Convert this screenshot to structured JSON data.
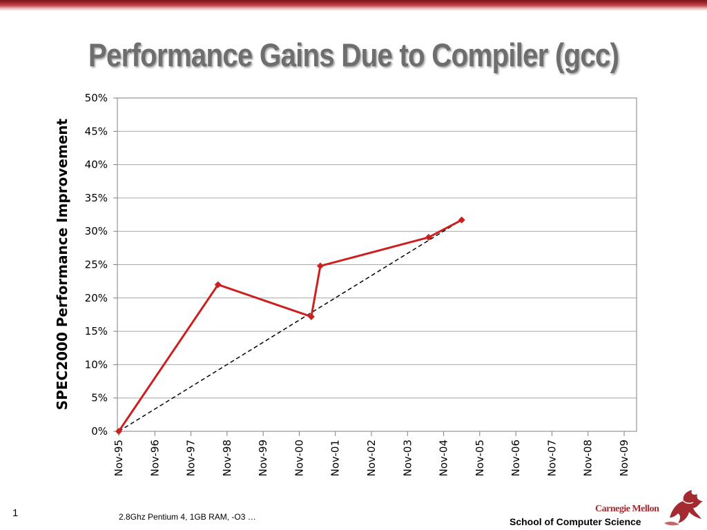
{
  "slide": {
    "title": "Performance Gains Due to Compiler (gcc)",
    "page_number": "1",
    "footnote": "2.8Ghz Pentium 4, 1GB RAM, -O3 …",
    "brand": "Carnegie Mellon",
    "school": "School of Computer Science",
    "logo_icon": "griffin-icon"
  },
  "chart_data": {
    "type": "line",
    "title": "",
    "ylabel": "SPEC2000 Performance Improvement",
    "xlabel": "",
    "ylim": [
      0,
      50
    ],
    "yticks": [
      0,
      5,
      10,
      15,
      20,
      25,
      30,
      35,
      40,
      45,
      50
    ],
    "ytick_labels": [
      "0%",
      "5%",
      "10%",
      "15%",
      "20%",
      "25%",
      "30%",
      "35%",
      "40%",
      "45%",
      "50%"
    ],
    "xticks": [
      "Nov-95",
      "Nov-96",
      "Nov-97",
      "Nov-98",
      "Nov-99",
      "Nov-00",
      "Nov-01",
      "Nov-02",
      "Nov-03",
      "Nov-04",
      "Nov-05",
      "Nov-06",
      "Nov-07",
      "Nov-08",
      "Nov-09"
    ],
    "grid": true,
    "legend": "none",
    "series": [
      {
        "color": "#cc1f1f",
        "marker": "diamond",
        "points": [
          {
            "x": "Nov-95",
            "y": 0.0
          },
          {
            "x": "Aug-98",
            "y": 22.0
          },
          {
            "x": "Mar-01",
            "y": 17.2
          },
          {
            "x": "Jun-01",
            "y": 24.8
          },
          {
            "x": "Jun-04",
            "y": 29.1
          },
          {
            "x": "May-05",
            "y": 31.7
          }
        ]
      }
    ],
    "trendline": {
      "color": "#000000",
      "style": "dashed",
      "points": [
        {
          "x": "Nov-95",
          "y": 0.0
        },
        {
          "x": "May-05",
          "y": 31.7
        }
      ]
    }
  }
}
